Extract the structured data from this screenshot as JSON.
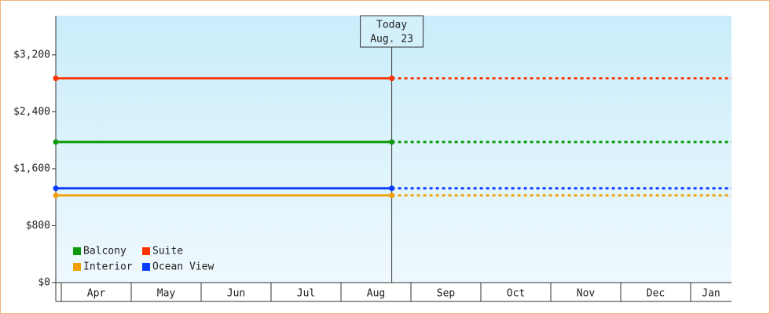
{
  "chart_data": {
    "type": "line",
    "categories": [
      "Apr",
      "May",
      "Jun",
      "Jul",
      "Aug",
      "Sep",
      "Oct",
      "Nov",
      "Dec",
      "Jan"
    ],
    "annotation": {
      "label": "Today",
      "date": "Aug. 23",
      "month": "Aug",
      "day": 23
    },
    "series": [
      {
        "name": "Balcony",
        "color": "#0a9a0a",
        "value": 1975
      },
      {
        "name": "Suite",
        "color": "#ff3300",
        "value": 2870
      },
      {
        "name": "Interior",
        "color": "#f2a007",
        "value": 1225
      },
      {
        "name": "Ocean View",
        "color": "#0a3cff",
        "value": 1325
      }
    ],
    "ylim": [
      0,
      3750
    ],
    "yticks": [
      {
        "value": 0,
        "label": "$0"
      },
      {
        "value": 800,
        "label": "$800"
      },
      {
        "value": 1600,
        "label": "$1,600"
      },
      {
        "value": 2400,
        "label": "$2,400"
      },
      {
        "value": 3200,
        "label": "$3,200"
      }
    ],
    "legend": "bottom-left"
  }
}
